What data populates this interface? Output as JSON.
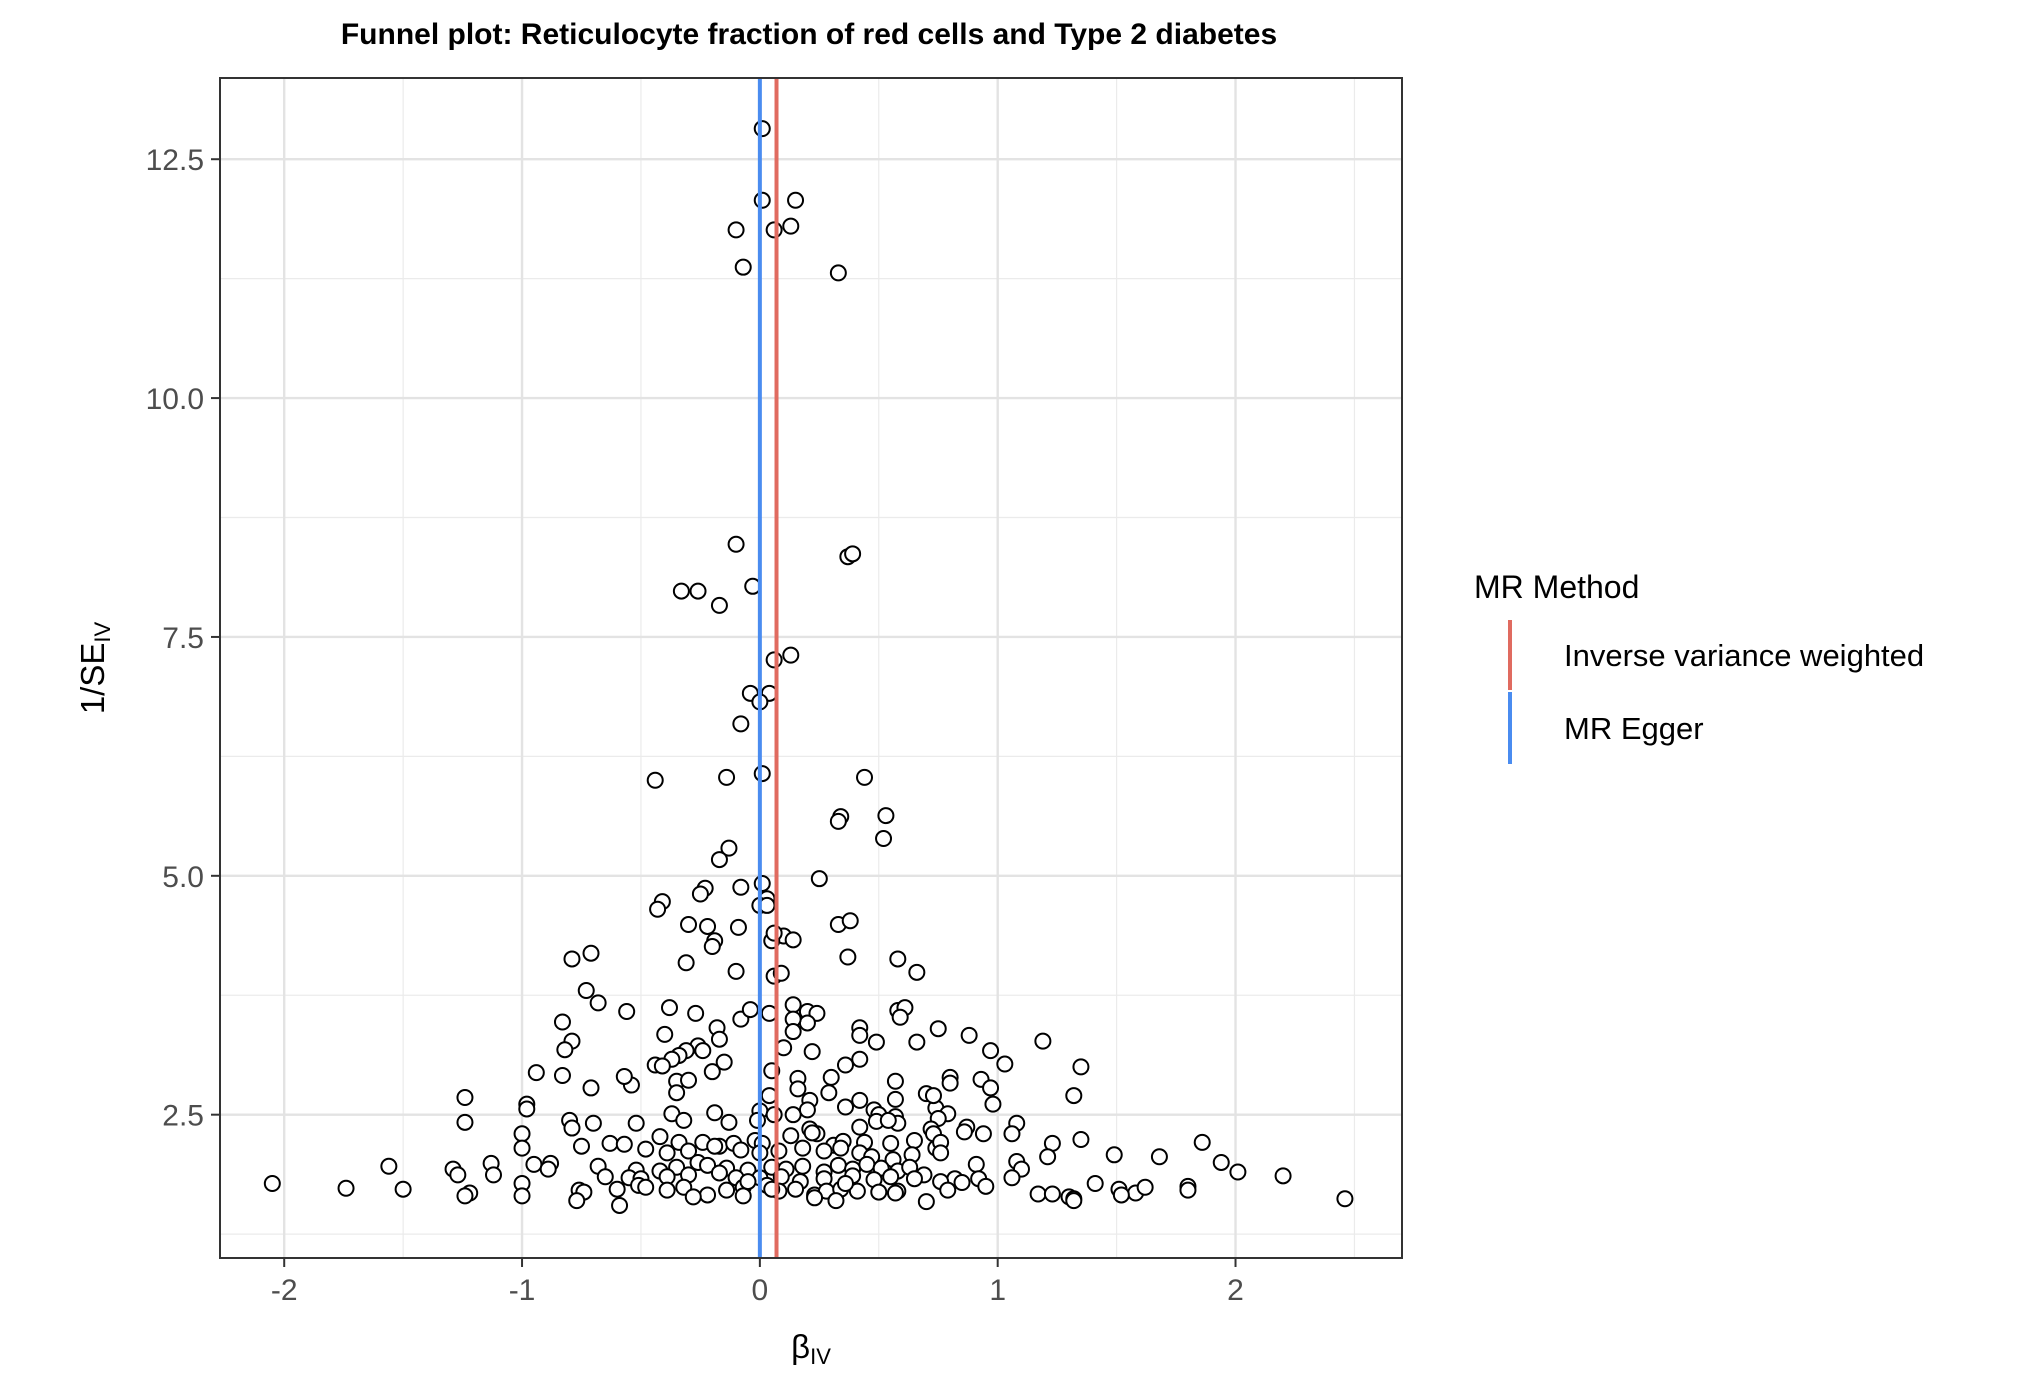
{
  "chart_data": {
    "type": "scatter",
    "title": "Funnel plot: Reticulocyte fraction of red cells and Type 2 diabetes",
    "xlabel": {
      "main": "β",
      "sub": "IV"
    },
    "ylabel": {
      "main": "1/SE",
      "sub": "IV"
    },
    "xlim": [
      -2.27,
      2.7
    ],
    "ylim": [
      1.0,
      13.35
    ],
    "xticks": [
      -2,
      -1,
      0,
      1,
      2
    ],
    "xtick_labels": [
      "-2",
      "-1",
      "0",
      "1",
      "2"
    ],
    "yticks": [
      2.5,
      5.0,
      7.5,
      10.0,
      12.5
    ],
    "ytick_labels": [
      "2.5",
      "5.0",
      "7.5",
      "10.0",
      "12.5"
    ],
    "grid": true,
    "legend_position": "right",
    "legend": {
      "title": "MR Method",
      "entries": [
        {
          "label": "Inverse variance weighted",
          "color": "#E06B60"
        },
        {
          "label": "MR Egger",
          "color": "#4A8CF0"
        }
      ]
    },
    "vlines": [
      {
        "method": "Inverse variance weighted",
        "x": 0.07,
        "color": "#E06B60"
      },
      {
        "method": "MR Egger",
        "x": 0.0,
        "color": "#4A8CF0"
      }
    ],
    "points": [
      [
        0.01,
        12.82
      ],
      [
        0.01,
        12.07
      ],
      [
        0.15,
        12.07
      ],
      [
        -0.1,
        11.76
      ],
      [
        0.06,
        11.76
      ],
      [
        0.13,
        11.8
      ],
      [
        -0.07,
        11.37
      ],
      [
        0.33,
        11.31
      ],
      [
        -0.1,
        8.47
      ],
      [
        0.37,
        8.34
      ],
      [
        0.39,
        8.37
      ],
      [
        -0.33,
        7.98
      ],
      [
        -0.26,
        7.98
      ],
      [
        -0.03,
        8.03
      ],
      [
        -0.17,
        7.83
      ],
      [
        0.06,
        7.26
      ],
      [
        0.13,
        7.31
      ],
      [
        -0.04,
        6.91
      ],
      [
        0.04,
        6.91
      ],
      [
        0.0,
        6.82
      ],
      [
        -0.08,
        6.59
      ],
      [
        -0.44,
        6.0
      ],
      [
        -0.14,
        6.03
      ],
      [
        0.01,
        6.07
      ],
      [
        0.44,
        6.03
      ],
      [
        0.53,
        5.63
      ],
      [
        0.34,
        5.62
      ],
      [
        0.33,
        5.57
      ],
      [
        0.52,
        5.39
      ],
      [
        -0.13,
        5.29
      ],
      [
        -0.17,
        5.17
      ],
      [
        0.01,
        4.92
      ],
      [
        0.25,
        4.97
      ],
      [
        -0.08,
        4.88
      ],
      [
        -0.23,
        4.87
      ],
      [
        -0.25,
        4.81
      ],
      [
        0.03,
        4.76
      ],
      [
        -0.41,
        4.73
      ],
      [
        -0.43,
        4.65
      ],
      [
        0.0,
        4.69
      ],
      [
        0.03,
        4.69
      ],
      [
        -0.3,
        4.49
      ],
      [
        -0.22,
        4.47
      ],
      [
        -0.09,
        4.46
      ],
      [
        0.33,
        4.49
      ],
      [
        0.38,
        4.53
      ],
      [
        0.1,
        4.37
      ],
      [
        0.05,
        4.32
      ],
      [
        0.06,
        4.4
      ],
      [
        0.14,
        4.33
      ],
      [
        -0.19,
        4.32
      ],
      [
        -0.2,
        4.26
      ],
      [
        -0.79,
        4.13
      ],
      [
        -0.71,
        4.19
      ],
      [
        -0.31,
        4.09
      ],
      [
        0.37,
        4.15
      ],
      [
        0.58,
        4.13
      ],
      [
        0.66,
        3.99
      ],
      [
        -0.1,
        4.0
      ],
      [
        0.06,
        3.95
      ],
      [
        0.09,
        3.98
      ],
      [
        -0.73,
        3.8
      ],
      [
        -0.68,
        3.67
      ],
      [
        -0.56,
        3.58
      ],
      [
        -0.38,
        3.62
      ],
      [
        -0.27,
        3.56
      ],
      [
        -0.08,
        3.5
      ],
      [
        -0.04,
        3.6
      ],
      [
        0.04,
        3.56
      ],
      [
        0.14,
        3.65
      ],
      [
        0.2,
        3.58
      ],
      [
        0.24,
        3.56
      ],
      [
        0.2,
        3.46
      ],
      [
        0.14,
        3.5
      ],
      [
        0.58,
        3.59
      ],
      [
        0.61,
        3.62
      ],
      [
        0.59,
        3.52
      ],
      [
        0.42,
        3.41
      ],
      [
        0.42,
        3.33
      ],
      [
        0.75,
        3.4
      ],
      [
        0.88,
        3.33
      ],
      [
        -0.83,
        3.47
      ],
      [
        -0.79,
        3.27
      ],
      [
        -0.82,
        3.18
      ],
      [
        -0.18,
        3.41
      ],
      [
        -0.4,
        3.34
      ],
      [
        -0.17,
        3.29
      ],
      [
        -0.26,
        3.22
      ],
      [
        -0.31,
        3.17
      ],
      [
        -0.34,
        3.12
      ],
      [
        -0.37,
        3.08
      ],
      [
        -0.24,
        3.17
      ],
      [
        0.14,
        3.37
      ],
      [
        0.1,
        3.2
      ],
      [
        0.22,
        3.16
      ],
      [
        0.36,
        3.02
      ],
      [
        0.42,
        3.08
      ],
      [
        0.49,
        3.26
      ],
      [
        0.66,
        3.26
      ],
      [
        0.97,
        3.17
      ],
      [
        1.03,
        3.03
      ],
      [
        1.19,
        3.27
      ],
      [
        1.35,
        3.0
      ],
      [
        -0.94,
        2.94
      ],
      [
        -0.83,
        2.91
      ],
      [
        -0.44,
        3.02
      ],
      [
        -0.41,
        3.01
      ],
      [
        -0.15,
        3.05
      ],
      [
        0.05,
        2.96
      ],
      [
        -0.35,
        2.85
      ],
      [
        -0.3,
        2.86
      ],
      [
        -0.35,
        2.73
      ],
      [
        0.16,
        2.88
      ],
      [
        0.3,
        2.89
      ],
      [
        0.57,
        2.85
      ],
      [
        0.8,
        2.89
      ],
      [
        0.8,
        2.83
      ],
      [
        0.93,
        2.87
      ],
      [
        0.97,
        2.78
      ],
      [
        1.32,
        2.7
      ],
      [
        -0.71,
        2.78
      ],
      [
        -0.54,
        2.81
      ],
      [
        -0.57,
        2.9
      ],
      [
        -1.24,
        2.68
      ],
      [
        -0.98,
        2.61
      ],
      [
        -0.98,
        2.56
      ],
      [
        -0.2,
        2.95
      ],
      [
        0.04,
        2.7
      ],
      [
        0.16,
        2.77
      ],
      [
        0.21,
        2.65
      ],
      [
        0.29,
        2.73
      ],
      [
        0.42,
        2.65
      ],
      [
        0.57,
        2.66
      ],
      [
        0.7,
        2.72
      ],
      [
        0.74,
        2.57
      ],
      [
        0.73,
        2.7
      ],
      [
        0.79,
        2.51
      ],
      [
        0.98,
        2.61
      ],
      [
        0.94,
        2.3
      ],
      [
        -0.37,
        2.51
      ],
      [
        -0.19,
        2.52
      ],
      [
        0.0,
        2.54
      ],
      [
        0.06,
        2.5
      ],
      [
        0.14,
        2.5
      ],
      [
        0.2,
        2.55
      ],
      [
        0.36,
        2.58
      ],
      [
        0.48,
        2.55
      ],
      [
        0.5,
        2.5
      ],
      [
        0.57,
        2.48
      ],
      [
        0.58,
        2.41
      ],
      [
        0.75,
        2.46
      ],
      [
        0.87,
        2.37
      ],
      [
        1.08,
        2.41
      ],
      [
        -1.24,
        2.42
      ],
      [
        -0.8,
        2.44
      ],
      [
        -0.7,
        2.41
      ],
      [
        -0.52,
        2.41
      ],
      [
        -0.32,
        2.44
      ],
      [
        -0.13,
        2.42
      ],
      [
        -0.01,
        2.44
      ],
      [
        0.21,
        2.35
      ],
      [
        0.24,
        2.3
      ],
      [
        0.49,
        2.43
      ],
      [
        0.54,
        2.44
      ],
      [
        0.42,
        2.37
      ],
      [
        0.72,
        2.35
      ],
      [
        0.73,
        2.3
      ],
      [
        0.86,
        2.32
      ],
      [
        1.06,
        2.3
      ],
      [
        1.23,
        2.2
      ],
      [
        1.35,
        2.24
      ],
      [
        1.86,
        2.21
      ],
      [
        -1.0,
        2.3
      ],
      [
        -0.79,
        2.36
      ],
      [
        -0.63,
        2.2
      ],
      [
        -0.57,
        2.19
      ],
      [
        -0.42,
        2.27
      ],
      [
        -0.34,
        2.21
      ],
      [
        -0.24,
        2.21
      ],
      [
        -0.17,
        2.17
      ],
      [
        -0.11,
        2.2
      ],
      [
        -0.02,
        2.23
      ],
      [
        0.01,
        2.2
      ],
      [
        0.13,
        2.28
      ],
      [
        0.22,
        2.31
      ],
      [
        0.31,
        2.18
      ],
      [
        0.35,
        2.22
      ],
      [
        0.44,
        2.21
      ],
      [
        0.55,
        2.2
      ],
      [
        0.65,
        2.23
      ],
      [
        0.74,
        2.15
      ],
      [
        0.76,
        2.21
      ],
      [
        -1.0,
        2.15
      ],
      [
        -0.75,
        2.17
      ],
      [
        -0.48,
        2.14
      ],
      [
        -0.39,
        2.1
      ],
      [
        -0.3,
        2.12
      ],
      [
        -0.19,
        2.17
      ],
      [
        -0.08,
        2.13
      ],
      [
        0.0,
        2.1
      ],
      [
        0.08,
        2.12
      ],
      [
        0.18,
        2.15
      ],
      [
        0.27,
        2.12
      ],
      [
        0.34,
        2.15
      ],
      [
        0.42,
        2.1
      ],
      [
        0.47,
        2.06
      ],
      [
        0.56,
        2.03
      ],
      [
        0.64,
        2.08
      ],
      [
        0.76,
        2.1
      ],
      [
        1.21,
        2.06
      ],
      [
        1.08,
        2.01
      ],
      [
        1.49,
        2.08
      ],
      [
        -1.13,
        1.99
      ],
      [
        -0.95,
        1.98
      ],
      [
        -0.88,
        1.99
      ],
      [
        -0.68,
        1.96
      ],
      [
        -0.52,
        1.92
      ],
      [
        -0.42,
        1.91
      ],
      [
        -0.35,
        1.95
      ],
      [
        -0.26,
        2.0
      ],
      [
        -0.22,
        1.97
      ],
      [
        -0.14,
        1.94
      ],
      [
        -0.05,
        1.92
      ],
      [
        0.05,
        1.95
      ],
      [
        0.11,
        1.93
      ],
      [
        0.18,
        1.96
      ],
      [
        0.27,
        1.9
      ],
      [
        0.33,
        1.97
      ],
      [
        0.39,
        1.93
      ],
      [
        0.45,
        1.98
      ],
      [
        0.51,
        1.94
      ],
      [
        0.58,
        1.91
      ],
      [
        0.63,
        1.95
      ],
      [
        0.69,
        1.87
      ],
      [
        0.82,
        1.83
      ],
      [
        0.91,
        1.98
      ],
      [
        1.1,
        1.93
      ],
      [
        1.68,
        2.06
      ],
      [
        1.94,
        2.0
      ],
      [
        2.01,
        1.9
      ],
      [
        -1.56,
        1.96
      ],
      [
        -1.29,
        1.93
      ],
      [
        -1.27,
        1.87
      ],
      [
        -1.12,
        1.87
      ],
      [
        -0.89,
        1.93
      ],
      [
        -0.65,
        1.85
      ],
      [
        -0.55,
        1.84
      ],
      [
        -0.5,
        1.83
      ],
      [
        -0.39,
        1.85
      ],
      [
        -0.3,
        1.87
      ],
      [
        -0.17,
        1.89
      ],
      [
        -0.1,
        1.84
      ],
      [
        0.0,
        1.84
      ],
      [
        0.09,
        1.85
      ],
      [
        0.17,
        1.8
      ],
      [
        0.27,
        1.83
      ],
      [
        0.39,
        1.86
      ],
      [
        0.48,
        1.82
      ],
      [
        0.55,
        1.85
      ],
      [
        0.65,
        1.83
      ],
      [
        0.76,
        1.8
      ],
      [
        0.85,
        1.79
      ],
      [
        0.92,
        1.83
      ],
      [
        1.06,
        1.84
      ],
      [
        1.3,
        1.64
      ],
      [
        2.2,
        1.86
      ],
      [
        -2.05,
        1.78
      ],
      [
        -1.74,
        1.73
      ],
      [
        -1.5,
        1.72
      ],
      [
        -1.22,
        1.68
      ],
      [
        -1.0,
        1.78
      ],
      [
        -0.76,
        1.71
      ],
      [
        -0.74,
        1.69
      ],
      [
        -0.6,
        1.72
      ],
      [
        -0.51,
        1.76
      ],
      [
        -0.48,
        1.74
      ],
      [
        -0.39,
        1.71
      ],
      [
        -0.32,
        1.74
      ],
      [
        -0.22,
        1.66
      ],
      [
        -0.14,
        1.71
      ],
      [
        -0.07,
        1.74
      ],
      [
        0.03,
        1.76
      ],
      [
        0.08,
        1.7
      ],
      [
        0.15,
        1.72
      ],
      [
        0.23,
        1.66
      ],
      [
        0.28,
        1.7
      ],
      [
        0.34,
        1.72
      ],
      [
        0.41,
        1.7
      ],
      [
        0.5,
        1.69
      ],
      [
        0.58,
        1.7
      ],
      [
        0.79,
        1.71
      ],
      [
        0.95,
        1.75
      ],
      [
        1.17,
        1.67
      ],
      [
        1.23,
        1.67
      ],
      [
        1.32,
        1.62
      ],
      [
        1.41,
        1.78
      ],
      [
        1.51,
        1.72
      ],
      [
        1.58,
        1.68
      ],
      [
        1.62,
        1.74
      ],
      [
        1.8,
        1.75
      ],
      [
        2.46,
        1.62
      ],
      [
        -1.24,
        1.65
      ],
      [
        -1.0,
        1.65
      ],
      [
        -0.77,
        1.6
      ],
      [
        -0.59,
        1.55
      ],
      [
        -0.28,
        1.64
      ],
      [
        -0.07,
        1.65
      ],
      [
        0.23,
        1.63
      ],
      [
        0.32,
        1.6
      ],
      [
        0.7,
        1.59
      ],
      [
        1.32,
        1.6
      ],
      [
        1.52,
        1.66
      ],
      [
        1.8,
        1.71
      ],
      [
        0.57,
        1.68
      ],
      [
        0.05,
        1.72
      ],
      [
        -0.05,
        1.8
      ],
      [
        0.36,
        1.78
      ]
    ]
  }
}
